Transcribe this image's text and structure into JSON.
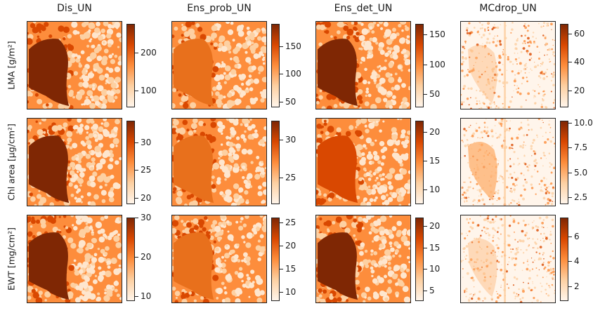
{
  "columns": [
    "Dis_UN",
    "Ens_prob_UN",
    "Ens_det_UN",
    "MCdrop_UN"
  ],
  "rows": [
    "LMA [g/m²]",
    "Chl area [µg/cm²]",
    "EWT [mg/cm²]"
  ],
  "colormap": {
    "name": "Oranges",
    "stops": [
      "#fff5eb",
      "#fdd0a2",
      "#fd8d3c",
      "#d94801",
      "#7f2704"
    ]
  },
  "chart_data": {
    "type": "heatmap",
    "layout": "3x4 grid of heatmap panels, each with its own vertical colorbar on the right",
    "panels": [
      {
        "row": "LMA [g/m²]",
        "column": "Dis_UN",
        "colorbar": {
          "range": [
            55,
            275
          ],
          "ticks": [
            100,
            200
          ]
        }
      },
      {
        "row": "LMA [g/m²]",
        "column": "Ens_prob_UN",
        "colorbar": {
          "range": [
            40,
            190
          ],
          "ticks": [
            50,
            100,
            150
          ]
        }
      },
      {
        "row": "LMA [g/m²]",
        "column": "Ens_det_UN",
        "colorbar": {
          "range": [
            28,
            168
          ],
          "ticks": [
            50,
            100,
            150
          ]
        }
      },
      {
        "row": "LMA [g/m²]",
        "column": "MCdrop_UN",
        "colorbar": {
          "range": [
            8,
            67
          ],
          "ticks": [
            20,
            40,
            60
          ]
        }
      },
      {
        "row": "Chl area [µg/cm²]",
        "column": "Dis_UN",
        "colorbar": {
          "range": [
            18.8,
            34
          ],
          "ticks": [
            20,
            25,
            30
          ]
        }
      },
      {
        "row": "Chl area [µg/cm²]",
        "column": "Ens_prob_UN",
        "colorbar": {
          "range": [
            21.5,
            32.5
          ],
          "ticks": [
            25,
            30
          ]
        }
      },
      {
        "row": "Chl area [µg/cm²]",
        "column": "Ens_det_UN",
        "colorbar": {
          "range": [
            7.5,
            22
          ],
          "ticks": [
            10,
            15,
            20
          ]
        }
      },
      {
        "row": "Chl area [µg/cm²]",
        "column": "MCdrop_UN",
        "colorbar": {
          "range": [
            1.8,
            10.2
          ],
          "ticks": [
            2.5,
            5.0,
            7.5,
            10.0
          ]
        }
      },
      {
        "row": "EWT [mg/cm²]",
        "column": "Dis_UN",
        "colorbar": {
          "range": [
            8.8,
            30
          ],
          "ticks": [
            10,
            20,
            30
          ]
        }
      },
      {
        "row": "EWT [mg/cm²]",
        "column": "Ens_prob_UN",
        "colorbar": {
          "range": [
            8,
            26
          ],
          "ticks": [
            10,
            15,
            20,
            25
          ]
        }
      },
      {
        "row": "EWT [mg/cm²]",
        "column": "Ens_det_UN",
        "colorbar": {
          "range": [
            2.5,
            22
          ],
          "ticks": [
            5,
            10,
            15,
            20
          ]
        }
      },
      {
        "row": "EWT [mg/cm²]",
        "column": "MCdrop_UN",
        "colorbar": {
          "range": [
            0.8,
            7.5
          ],
          "ticks": [
            2,
            4,
            6
          ]
        }
      }
    ]
  }
}
